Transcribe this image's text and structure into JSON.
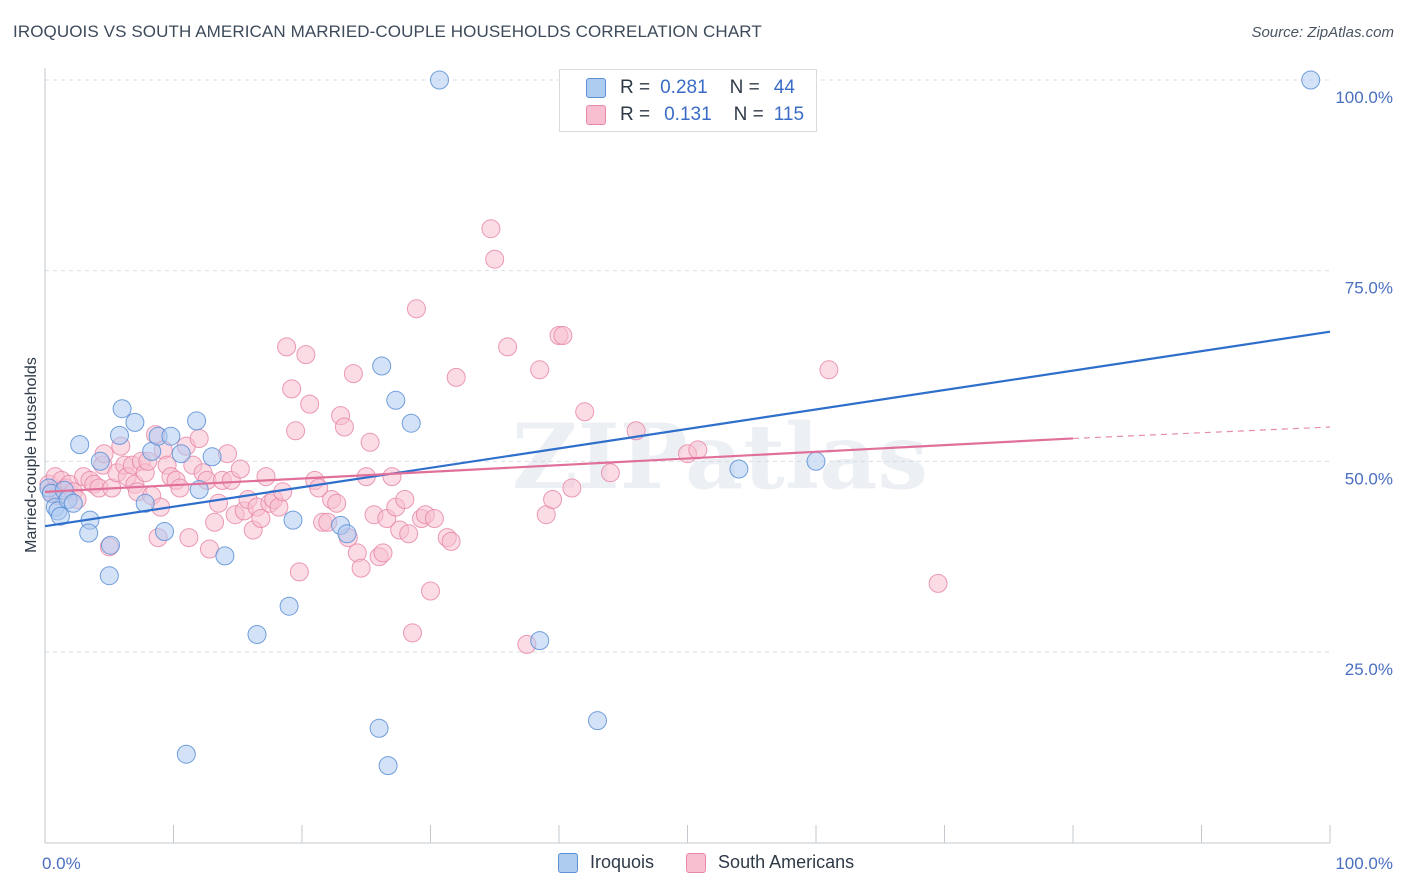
{
  "title": "IROQUOIS VS SOUTH AMERICAN MARRIED-COUPLE HOUSEHOLDS CORRELATION CHART",
  "source": "Source: ZipAtlas.com",
  "watermark": "ZIPatlas",
  "legend": {
    "rows": [
      {
        "r_label": "R =",
        "r_value": "0.281",
        "n_label": "N =",
        "n_value": "44"
      },
      {
        "r_label": "R =",
        "r_value": "0.131",
        "n_label": "N =",
        "n_value": "115"
      }
    ]
  },
  "bottom_legend": [
    "Iroquois",
    "South Americans"
  ],
  "colors": {
    "iroquois_fill": "#aecbf0",
    "iroquois_stroke": "#5b8fd6",
    "iroquois_line": "#2f6fcc",
    "south_fill": "#f7bfd0",
    "south_stroke": "#e888a8",
    "south_line": "#e0709a",
    "grid": "#d9dde3",
    "axis_text": "#4a6fc0"
  },
  "chart_data": {
    "type": "scatter",
    "title": "IROQUOIS VS SOUTH AMERICAN MARRIED-COUPLE HOUSEHOLDS CORRELATION CHART",
    "xlabel": "",
    "ylabel": "Married-couple Households",
    "xlim": [
      0,
      100
    ],
    "ylim": [
      0,
      104
    ],
    "x_tick_labels": [
      "0.0%",
      "100.0%"
    ],
    "y_ticks": [
      25,
      50,
      75,
      100
    ],
    "y_tick_labels": [
      "25.0%",
      "50.0%",
      "75.0%",
      "100.0%"
    ],
    "grid": true,
    "legend_position": "top-center",
    "series": [
      {
        "name": "Iroquois",
        "r": 0.281,
        "n": 44,
        "trend": {
          "x": [
            0,
            100
          ],
          "y": [
            41.5,
            67.0
          ],
          "dashed_after": null
        },
        "points": [
          [
            0.3,
            46.5
          ],
          [
            0.5,
            45.8
          ],
          [
            0.8,
            44.0
          ],
          [
            1.0,
            43.5
          ],
          [
            1.2,
            42.8
          ],
          [
            1.5,
            46.2
          ],
          [
            1.8,
            45.0
          ],
          [
            2.2,
            44.5
          ],
          [
            2.7,
            52.2
          ],
          [
            3.5,
            42.3
          ],
          [
            3.4,
            40.6
          ],
          [
            4.3,
            50.0
          ],
          [
            5.1,
            39.0
          ],
          [
            5.0,
            35.0
          ],
          [
            5.8,
            53.4
          ],
          [
            6.0,
            56.9
          ],
          [
            7.0,
            55.1
          ],
          [
            7.8,
            44.5
          ],
          [
            8.3,
            51.3
          ],
          [
            8.8,
            53.3
          ],
          [
            9.3,
            40.8
          ],
          [
            9.8,
            53.3
          ],
          [
            10.6,
            51.0
          ],
          [
            11.0,
            11.6
          ],
          [
            11.8,
            55.3
          ],
          [
            12.0,
            46.3
          ],
          [
            13.0,
            50.6
          ],
          [
            14.0,
            37.6
          ],
          [
            16.5,
            27.3
          ],
          [
            19.0,
            31.0
          ],
          [
            19.3,
            42.3
          ],
          [
            23.0,
            41.6
          ],
          [
            23.5,
            40.5
          ],
          [
            26.0,
            15.0
          ],
          [
            26.2,
            62.5
          ],
          [
            26.7,
            10.1
          ],
          [
            27.3,
            58.0
          ],
          [
            28.5,
            55.0
          ],
          [
            30.7,
            100.0
          ],
          [
            38.5,
            26.5
          ],
          [
            43.0,
            16.0
          ],
          [
            54.0,
            49.0
          ],
          [
            60.0,
            50.0
          ],
          [
            98.5,
            100.0
          ]
        ]
      },
      {
        "name": "South Americans",
        "r": 0.131,
        "n": 115,
        "trend": {
          "x": [
            0,
            80
          ],
          "y": [
            46.0,
            53.0
          ],
          "dashed_after": 80,
          "dashed_end": [
            100,
            54.5
          ]
        },
        "points": [
          [
            0.3,
            47.0
          ],
          [
            0.5,
            46.0
          ],
          [
            0.8,
            48.0
          ],
          [
            1.0,
            45.5
          ],
          [
            1.3,
            47.5
          ],
          [
            1.6,
            46.5
          ],
          [
            1.9,
            47.0
          ],
          [
            2.2,
            46.0
          ],
          [
            2.5,
            45.0
          ],
          [
            3.0,
            48.0
          ],
          [
            3.5,
            47.5
          ],
          [
            3.8,
            47.0
          ],
          [
            4.2,
            46.5
          ],
          [
            4.5,
            49.5
          ],
          [
            4.6,
            51.0
          ],
          [
            5.0,
            38.8
          ],
          [
            5.2,
            46.5
          ],
          [
            5.6,
            48.5
          ],
          [
            5.9,
            52.0
          ],
          [
            6.2,
            49.5
          ],
          [
            6.4,
            48.0
          ],
          [
            6.8,
            49.5
          ],
          [
            7.0,
            47.0
          ],
          [
            7.2,
            46.0
          ],
          [
            7.5,
            50.0
          ],
          [
            7.8,
            48.5
          ],
          [
            8.0,
            50.0
          ],
          [
            8.3,
            45.5
          ],
          [
            8.6,
            53.5
          ],
          [
            8.8,
            40.0
          ],
          [
            9.0,
            44.0
          ],
          [
            9.2,
            51.5
          ],
          [
            9.5,
            49.5
          ],
          [
            9.8,
            48.0
          ],
          [
            10.2,
            47.5
          ],
          [
            10.5,
            46.5
          ],
          [
            11.0,
            52.0
          ],
          [
            11.2,
            40.0
          ],
          [
            11.5,
            49.5
          ],
          [
            12.0,
            53.0
          ],
          [
            12.3,
            48.5
          ],
          [
            12.6,
            47.5
          ],
          [
            12.8,
            38.5
          ],
          [
            13.2,
            42.0
          ],
          [
            13.5,
            44.5
          ],
          [
            13.8,
            47.5
          ],
          [
            14.2,
            51.0
          ],
          [
            14.5,
            47.5
          ],
          [
            14.8,
            43.0
          ],
          [
            15.2,
            49.0
          ],
          [
            15.5,
            43.5
          ],
          [
            15.8,
            45.0
          ],
          [
            16.2,
            41.0
          ],
          [
            16.5,
            44.0
          ],
          [
            16.8,
            42.5
          ],
          [
            17.2,
            48.0
          ],
          [
            17.5,
            44.5
          ],
          [
            17.8,
            45.0
          ],
          [
            18.2,
            44.0
          ],
          [
            18.5,
            46.0
          ],
          [
            18.8,
            65.0
          ],
          [
            19.2,
            59.5
          ],
          [
            19.5,
            54.0
          ],
          [
            19.8,
            35.5
          ],
          [
            20.3,
            64.0
          ],
          [
            20.6,
            57.5
          ],
          [
            21.0,
            47.5
          ],
          [
            21.3,
            46.5
          ],
          [
            21.6,
            42.0
          ],
          [
            22.0,
            42.0
          ],
          [
            22.3,
            45.0
          ],
          [
            22.7,
            44.5
          ],
          [
            23.0,
            56.0
          ],
          [
            23.3,
            54.5
          ],
          [
            23.6,
            40.0
          ],
          [
            24.0,
            61.5
          ],
          [
            24.3,
            38.0
          ],
          [
            24.6,
            36.0
          ],
          [
            25.0,
            48.0
          ],
          [
            25.3,
            52.5
          ],
          [
            25.6,
            43.0
          ],
          [
            26.0,
            37.5
          ],
          [
            26.3,
            38.0
          ],
          [
            26.6,
            42.5
          ],
          [
            27.0,
            48.0
          ],
          [
            27.3,
            44.0
          ],
          [
            27.6,
            41.0
          ],
          [
            28.0,
            45.0
          ],
          [
            28.3,
            40.5
          ],
          [
            28.6,
            27.5
          ],
          [
            28.9,
            70.0
          ],
          [
            29.3,
            42.5
          ],
          [
            29.6,
            43.0
          ],
          [
            30.0,
            33.0
          ],
          [
            30.3,
            42.5
          ],
          [
            31.3,
            40.0
          ],
          [
            31.6,
            39.5
          ],
          [
            32.0,
            61.0
          ],
          [
            34.7,
            80.5
          ],
          [
            35.0,
            76.5
          ],
          [
            36.0,
            65.0
          ],
          [
            37.5,
            26.0
          ],
          [
            38.5,
            62.0
          ],
          [
            39.0,
            43.0
          ],
          [
            39.5,
            45.0
          ],
          [
            40.0,
            66.5
          ],
          [
            40.3,
            66.5
          ],
          [
            41.0,
            46.5
          ],
          [
            42.0,
            56.5
          ],
          [
            50.0,
            51.0
          ],
          [
            50.8,
            51.5
          ],
          [
            61.0,
            62.0
          ],
          [
            69.5,
            34.0
          ],
          [
            46.0,
            54.0
          ],
          [
            44.0,
            48.5
          ]
        ]
      }
    ]
  }
}
